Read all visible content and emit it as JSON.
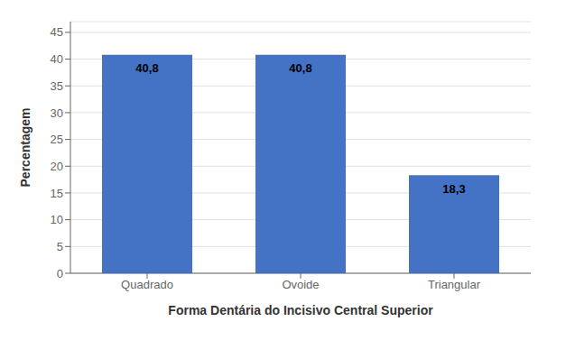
{
  "chart_data": {
    "type": "bar",
    "categories": [
      "Quadrado",
      "Ovoide",
      "Triangular"
    ],
    "values": [
      40.8,
      40.8,
      18.3
    ],
    "value_labels": [
      "40,8",
      "40,8",
      "18,3"
    ],
    "data_labels": true,
    "color": "#4472C4",
    "xlabel": "Forma Dentária do Incisivo Central Superior",
    "ylabel": "Percentagem",
    "ylim": [
      0,
      47
    ],
    "yticks": [
      0,
      5,
      10,
      15,
      20,
      25,
      30,
      35,
      40,
      45
    ],
    "grid": true
  }
}
